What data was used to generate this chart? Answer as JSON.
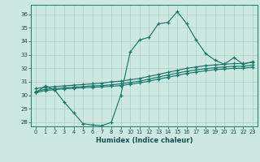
{
  "xlabel": "Humidex (Indice chaleur)",
  "background_color": "#cce8e0",
  "grid_color": "#aad0c8",
  "line_color": "#1a7a6a",
  "xlim": [
    -0.5,
    23.5
  ],
  "ylim": [
    27.7,
    36.7
  ],
  "xticks": [
    0,
    1,
    2,
    3,
    4,
    5,
    6,
    7,
    8,
    9,
    10,
    11,
    12,
    13,
    14,
    15,
    16,
    17,
    18,
    19,
    20,
    21,
    22,
    23
  ],
  "yticks": [
    28,
    29,
    30,
    31,
    32,
    33,
    34,
    35,
    36
  ],
  "series": [
    {
      "x": [
        0,
        1,
        2,
        3,
        4,
        5,
        6,
        7,
        8,
        9,
        10,
        11,
        12,
        13,
        14,
        15,
        16,
        17,
        18,
        19,
        20,
        21,
        22,
        23
      ],
      "y": [
        30.2,
        30.7,
        30.4,
        29.5,
        28.7,
        27.9,
        27.8,
        27.75,
        28.0,
        30.0,
        33.2,
        34.1,
        34.3,
        35.3,
        35.4,
        36.2,
        35.3,
        34.1,
        33.1,
        32.6,
        32.3,
        32.8,
        32.3,
        32.5
      ]
    },
    {
      "x": [
        0,
        1,
        2,
        3,
        4,
        5,
        6,
        7,
        8,
        9,
        10,
        11,
        12,
        13,
        14,
        15,
        16,
        17,
        18,
        19,
        20,
        21,
        22,
        23
      ],
      "y": [
        30.5,
        30.6,
        30.65,
        30.7,
        30.75,
        30.8,
        30.85,
        30.9,
        31.0,
        31.05,
        31.15,
        31.25,
        31.4,
        31.55,
        31.7,
        31.85,
        32.0,
        32.1,
        32.2,
        32.25,
        32.3,
        32.35,
        32.35,
        32.45
      ]
    },
    {
      "x": [
        0,
        1,
        2,
        3,
        4,
        5,
        6,
        7,
        8,
        9,
        10,
        11,
        12,
        13,
        14,
        15,
        16,
        17,
        18,
        19,
        20,
        21,
        22,
        23
      ],
      "y": [
        30.3,
        30.45,
        30.5,
        30.55,
        30.6,
        30.65,
        30.7,
        30.72,
        30.78,
        30.85,
        30.95,
        31.05,
        31.2,
        31.35,
        31.5,
        31.65,
        31.78,
        31.88,
        31.98,
        32.05,
        32.1,
        32.15,
        32.15,
        32.25
      ]
    },
    {
      "x": [
        0,
        1,
        2,
        3,
        4,
        5,
        6,
        7,
        8,
        9,
        10,
        11,
        12,
        13,
        14,
        15,
        16,
        17,
        18,
        19,
        20,
        21,
        22,
        23
      ],
      "y": [
        30.2,
        30.35,
        30.42,
        30.48,
        30.52,
        30.56,
        30.6,
        30.62,
        30.67,
        30.72,
        30.82,
        30.92,
        31.05,
        31.2,
        31.33,
        31.48,
        31.62,
        31.72,
        31.82,
        31.9,
        31.95,
        32.0,
        32.0,
        32.1
      ]
    }
  ]
}
